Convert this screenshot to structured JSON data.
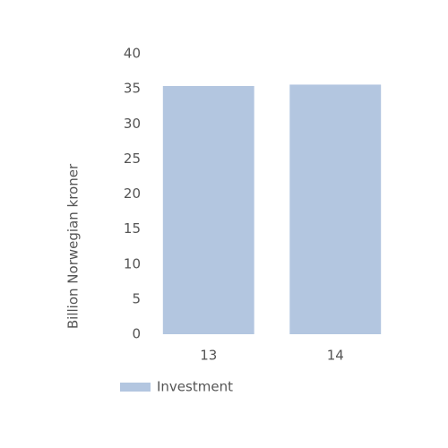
{
  "chart_data": {
    "type": "bar",
    "y_label": "Billion Norwegian kroner",
    "categories": [
      "13",
      "14"
    ],
    "series": [
      {
        "name": "Investment",
        "color": "#b3c6e0",
        "values": [
          35.4,
          35.6
        ]
      }
    ],
    "ylim": [
      0,
      40
    ],
    "yticks": [
      0,
      5,
      10,
      15,
      20,
      25,
      30,
      35,
      40
    ],
    "grid": false
  }
}
